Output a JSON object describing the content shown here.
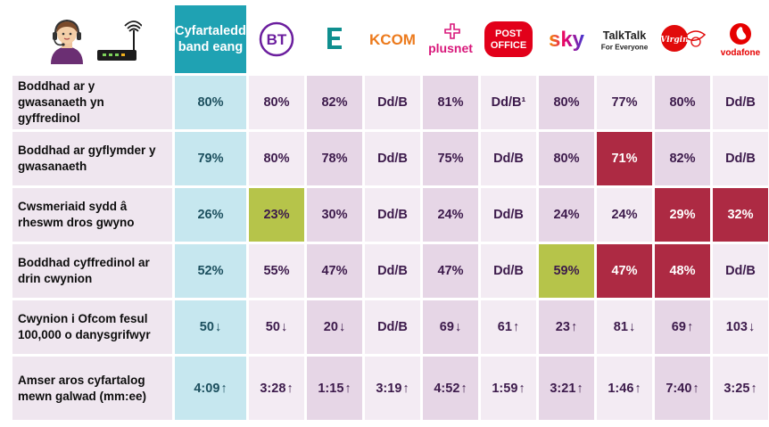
{
  "header": {
    "average_label_line1": "Cyfartaledd",
    "average_label_line2": "band eang",
    "providers": [
      {
        "name": "BT",
        "logo_text": "BT",
        "color": "#6b1e9e"
      },
      {
        "name": "EE",
        "logo_text": "EE",
        "color": "#0f8f8f"
      },
      {
        "name": "KCOM",
        "logo_text": "KCOM",
        "color": "#ec7a1c"
      },
      {
        "name": "Plusnet",
        "logo_text": "plusnet",
        "color": "#d8177a"
      },
      {
        "name": "Post Office",
        "logo_text_line1": "POST",
        "logo_text_line2": "OFFICE",
        "color": "#e2001a"
      },
      {
        "name": "Sky",
        "logo_text": "sky",
        "color": "#e6006e"
      },
      {
        "name": "TalkTalk",
        "logo_text": "TalkTalk",
        "logo_subtext": "For Everyone",
        "color": "#222222"
      },
      {
        "name": "Virgin",
        "logo_text": "Virgin",
        "color": "#e10a0a"
      },
      {
        "name": "Vodafone",
        "logo_text": "vodafone",
        "color": "#e60000"
      }
    ]
  },
  "rows": [
    {
      "label": "Boddhad ar y gwasanaeth yn gyffredinol",
      "average": "80%",
      "values": [
        {
          "text": "80%",
          "style": "light"
        },
        {
          "text": "82%",
          "style": "dark"
        },
        {
          "text": "Dd/B",
          "style": "light"
        },
        {
          "text": "81%",
          "style": "dark"
        },
        {
          "text": "Dd/B¹",
          "style": "light"
        },
        {
          "text": "80%",
          "style": "dark"
        },
        {
          "text": "77%",
          "style": "light"
        },
        {
          "text": "80%",
          "style": "dark"
        },
        {
          "text": "Dd/B",
          "style": "light"
        }
      ]
    },
    {
      "label": "Boddhad ar gyflymder y gwasanaeth",
      "average": "79%",
      "values": [
        {
          "text": "80%",
          "style": "light"
        },
        {
          "text": "78%",
          "style": "dark"
        },
        {
          "text": "Dd/B",
          "style": "light"
        },
        {
          "text": "75%",
          "style": "dark"
        },
        {
          "text": "Dd/B",
          "style": "light"
        },
        {
          "text": "80%",
          "style": "dark"
        },
        {
          "text": "71%",
          "style": "red"
        },
        {
          "text": "82%",
          "style": "dark"
        },
        {
          "text": "Dd/B",
          "style": "light"
        }
      ]
    },
    {
      "label": "Cwsmeriaid sydd â rheswm dros gwyno",
      "average": "26%",
      "values": [
        {
          "text": "23%",
          "style": "green"
        },
        {
          "text": "30%",
          "style": "dark"
        },
        {
          "text": "Dd/B",
          "style": "light"
        },
        {
          "text": "24%",
          "style": "dark"
        },
        {
          "text": "Dd/B",
          "style": "light"
        },
        {
          "text": "24%",
          "style": "dark"
        },
        {
          "text": "24%",
          "style": "light"
        },
        {
          "text": "29%",
          "style": "red"
        },
        {
          "text": "32%",
          "style": "red"
        }
      ]
    },
    {
      "label": "Boddhad cyffredinol ar drin cwynion",
      "average": "52%",
      "values": [
        {
          "text": "55%",
          "style": "light"
        },
        {
          "text": "47%",
          "style": "dark"
        },
        {
          "text": "Dd/B",
          "style": "light"
        },
        {
          "text": "47%",
          "style": "dark"
        },
        {
          "text": "Dd/B",
          "style": "light"
        },
        {
          "text": "59%",
          "style": "green"
        },
        {
          "text": "47%",
          "style": "red"
        },
        {
          "text": "48%",
          "style": "red"
        },
        {
          "text": "Dd/B",
          "style": "light"
        }
      ]
    },
    {
      "label": "Cwynion i Ofcom fesul 100,000 o danysgrifwyr",
      "average": "50",
      "average_arrow": "↓",
      "values": [
        {
          "text": "50",
          "arrow": "↓",
          "style": "light"
        },
        {
          "text": "20",
          "arrow": "↓",
          "style": "dark"
        },
        {
          "text": "Dd/B",
          "style": "light"
        },
        {
          "text": "69",
          "arrow": "↓",
          "style": "dark"
        },
        {
          "text": "61",
          "arrow": "↑",
          "style": "light"
        },
        {
          "text": "23",
          "arrow": "↑",
          "style": "dark"
        },
        {
          "text": "81",
          "arrow": "↓",
          "style": "light"
        },
        {
          "text": "69",
          "arrow": "↑",
          "style": "dark"
        },
        {
          "text": "103",
          "arrow": "↓",
          "style": "light"
        }
      ]
    },
    {
      "label": "Amser aros cyfartalog mewn galwad (mm:ee)",
      "average": "4:09",
      "average_arrow": "↑",
      "values": [
        {
          "text": "3:28",
          "arrow": "↑",
          "style": "light"
        },
        {
          "text": "1:15",
          "arrow": "↑",
          "style": "dark"
        },
        {
          "text": "3:19",
          "arrow": "↑",
          "style": "light"
        },
        {
          "text": "4:52",
          "arrow": "↑",
          "style": "dark"
        },
        {
          "text": "1:59",
          "arrow": "↑",
          "style": "light"
        },
        {
          "text": "3:21",
          "arrow": "↑",
          "style": "dark"
        },
        {
          "text": "1:46",
          "arrow": "↑",
          "style": "light"
        },
        {
          "text": "7:40",
          "arrow": "↑",
          "style": "dark"
        },
        {
          "text": "3:25",
          "arrow": "↑",
          "style": "light"
        }
      ]
    }
  ]
}
